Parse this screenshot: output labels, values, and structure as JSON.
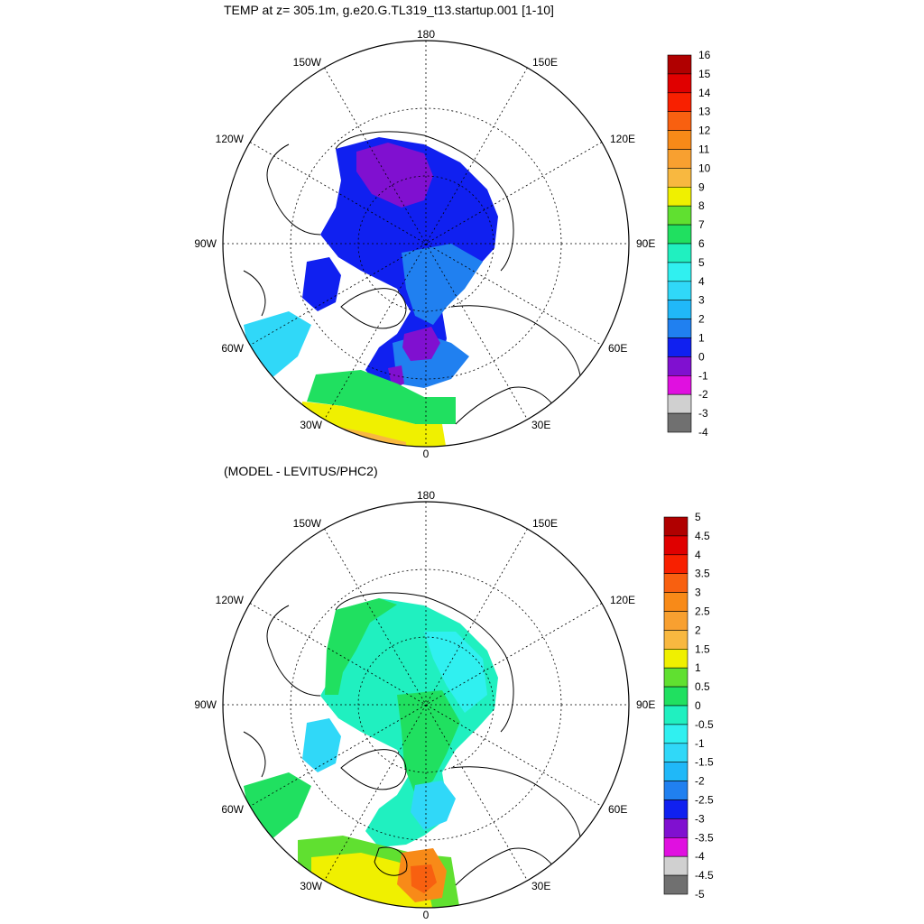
{
  "chart_data": [
    {
      "type": "heatmap",
      "projection": "polar-stereographic-north",
      "title": "TEMP at z= 305.1m, g.e20.G.TL319_t13.startup.001 [1-10]",
      "longitude_labels": [
        "180",
        "150E",
        "120E",
        "90E",
        "60E",
        "30E",
        "0",
        "30W",
        "60W",
        "90W",
        "120W",
        "150W"
      ],
      "colorbar": {
        "levels": [
          "16",
          "15",
          "14",
          "13",
          "12",
          "11",
          "10",
          "9",
          "8",
          "7",
          "6",
          "5",
          "4",
          "3",
          "2",
          "1",
          "0",
          "-1",
          "-2",
          "-3",
          "-4"
        ],
        "colors": [
          "#b00000",
          "#e00000",
          "#f82000",
          "#f86010",
          "#f88a18",
          "#f8a030",
          "#f8b840",
          "#f0f000",
          "#60e030",
          "#20e060",
          "#20f0c0",
          "#30f0f0",
          "#30d8f8",
          "#20b8f8",
          "#2080f0",
          "#1020f0",
          "#8010d0",
          "#e010e0",
          "#d0d0d0",
          "#707070"
        ]
      }
    },
    {
      "type": "heatmap",
      "projection": "polar-stereographic-north",
      "title": "(MODEL - LEVITUS/PHC2)",
      "longitude_labels": [
        "180",
        "150E",
        "120E",
        "90E",
        "60E",
        "30E",
        "0",
        "30W",
        "60W",
        "90W",
        "120W",
        "150W"
      ],
      "colorbar": {
        "levels": [
          "5",
          "4.5",
          "4",
          "3.5",
          "3",
          "2.5",
          "2",
          "1.5",
          "1",
          "0.5",
          "0",
          "-0.5",
          "-1",
          "-1.5",
          "-2",
          "-2.5",
          "-3",
          "-3.5",
          "-4",
          "-4.5",
          "-5"
        ],
        "colors": [
          "#b00000",
          "#e00000",
          "#f82000",
          "#f86010",
          "#f88a18",
          "#f8a030",
          "#f8b840",
          "#f0f000",
          "#60e030",
          "#20e060",
          "#20f0c0",
          "#30f0f0",
          "#30d8f8",
          "#20b8f8",
          "#2080f0",
          "#1020f0",
          "#8010d0",
          "#e010e0",
          "#d0d0d0",
          "#707070"
        ]
      }
    }
  ]
}
